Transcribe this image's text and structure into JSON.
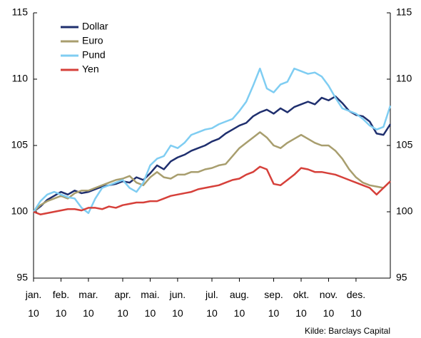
{
  "chart_data": {
    "type": "line",
    "categories": [
      "jan. 10",
      null,
      null,
      null,
      "feb. 10",
      null,
      null,
      null,
      "mar. 10",
      null,
      null,
      null,
      null,
      "apr. 10",
      null,
      null,
      null,
      "mai. 10",
      null,
      null,
      null,
      "jun. 10",
      null,
      null,
      null,
      null,
      "jul. 10",
      null,
      null,
      null,
      "aug. 10",
      null,
      null,
      null,
      null,
      "sep. 10",
      null,
      null,
      null,
      "okt. 10",
      null,
      null,
      null,
      "nov. 10",
      null,
      null,
      null,
      "des. 10",
      null,
      null,
      null,
      null,
      null
    ],
    "series": [
      {
        "name": "Dollar",
        "color": "#1f2f6e",
        "values": [
          100,
          100.4,
          100.9,
          101.2,
          101.5,
          101.3,
          101.6,
          101.4,
          101.5,
          101.7,
          101.9,
          102.0,
          102.1,
          102.3,
          102.2,
          102.6,
          102.4,
          102.9,
          103.5,
          103.2,
          103.8,
          104.1,
          104.3,
          104.6,
          104.8,
          105.0,
          105.3,
          105.5,
          105.9,
          106.2,
          106.5,
          106.7,
          107.2,
          107.5,
          107.7,
          107.4,
          107.8,
          107.5,
          107.9,
          108.1,
          108.3,
          108.1,
          108.6,
          108.4,
          108.7,
          108.2,
          107.6,
          107.3,
          107.2,
          106.8,
          105.9,
          105.8,
          106.6
        ]
      },
      {
        "name": "Euro",
        "color": "#a89e6e",
        "values": [
          100,
          100.5,
          100.8,
          101.0,
          101.2,
          101.0,
          101.4,
          101.6,
          101.6,
          101.8,
          102.0,
          102.2,
          102.4,
          102.5,
          102.7,
          102.2,
          102.0,
          102.6,
          103.0,
          102.6,
          102.5,
          102.8,
          102.8,
          103.0,
          103.0,
          103.2,
          103.3,
          103.5,
          103.6,
          104.2,
          104.8,
          105.2,
          105.6,
          106.0,
          105.6,
          105.0,
          104.8,
          105.2,
          105.5,
          105.8,
          105.5,
          105.2,
          105.0,
          105.0,
          104.6,
          104.0,
          103.2,
          102.6,
          102.2,
          102.0,
          101.9,
          101.8,
          102.3
        ]
      },
      {
        "name": "Pund",
        "color": "#7fcdf2",
        "values": [
          100,
          100.8,
          101.3,
          101.5,
          101.3,
          101.1,
          101.0,
          100.3,
          99.9,
          101.0,
          101.8,
          102.0,
          102.2,
          102.4,
          101.8,
          101.5,
          102.2,
          103.5,
          104.0,
          104.2,
          105.0,
          104.8,
          105.2,
          105.8,
          106.0,
          106.2,
          106.3,
          106.6,
          106.8,
          107.0,
          107.6,
          108.3,
          109.5,
          110.8,
          109.3,
          109.0,
          109.6,
          109.8,
          110.8,
          110.6,
          110.4,
          110.5,
          110.2,
          109.5,
          108.6,
          107.8,
          107.6,
          107.4,
          107.0,
          106.5,
          106.2,
          106.4,
          108.0
        ]
      },
      {
        "name": "Yen",
        "color": "#d6403a",
        "values": [
          100,
          99.8,
          99.9,
          100.0,
          100.1,
          100.2,
          100.2,
          100.1,
          100.3,
          100.3,
          100.2,
          100.4,
          100.3,
          100.5,
          100.6,
          100.7,
          100.7,
          100.8,
          100.8,
          101.0,
          101.2,
          101.3,
          101.4,
          101.5,
          101.7,
          101.8,
          101.9,
          102.0,
          102.2,
          102.4,
          102.5,
          102.8,
          103.0,
          103.4,
          103.2,
          102.1,
          102.0,
          102.4,
          102.8,
          103.3,
          103.2,
          103.0,
          103.0,
          102.9,
          102.8,
          102.6,
          102.4,
          102.2,
          102.0,
          101.8,
          101.3,
          101.8,
          102.3
        ]
      }
    ],
    "ylim": [
      95,
      115
    ],
    "yticks": [
      95,
      100,
      105,
      110,
      115
    ],
    "y2lim": [
      95,
      115
    ],
    "y2ticks": [
      95,
      100,
      105,
      110,
      115
    ],
    "legend": "upper left",
    "source": "Kilde: Barclays Capital"
  }
}
